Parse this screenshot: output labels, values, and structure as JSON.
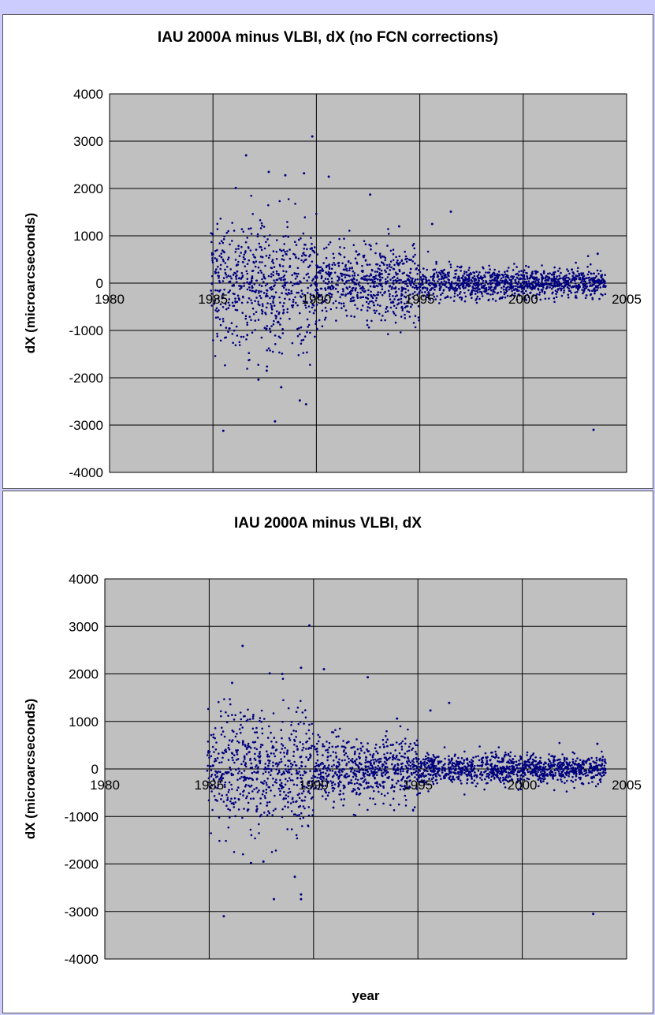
{
  "chart_data": [
    {
      "type": "scatter",
      "title": "IAU 2000A minus VLBI, dX (no FCN corrections)",
      "xlabel": "",
      "ylabel": "dX (microarcseconds)",
      "xlim": [
        1980,
        2005
      ],
      "ylim": [
        -4000,
        4000
      ],
      "xticks": [
        "1980",
        "1985",
        "1990",
        "1995",
        "2000",
        "2005"
      ],
      "yticks": [
        "4000",
        "3000",
        "2000",
        "1000",
        "0",
        "-1000",
        "-2000",
        "-3000",
        "-4000"
      ],
      "grid": true,
      "legend": "none",
      "colors": {
        "marker": "#00007f",
        "plot_bg": "#c0c0c0",
        "grid": "#000000"
      },
      "series": [
        {
          "spread_by_period": [
            {
              "from": 1984.9,
              "to": 1990.0,
              "sd": 700
            },
            {
              "from": 1990.0,
              "to": 1995.0,
              "sd": 380
            },
            {
              "from": 1995.0,
              "to": 2000.0,
              "sd": 170
            },
            {
              "from": 2000.0,
              "to": 2004.0,
              "sd": 150
            }
          ],
          "sample_points": [
            [
              1985.5,
              -3120
            ],
            [
              1986.1,
              2010
            ],
            [
              1986.6,
              2700
            ],
            [
              1987.7,
              2350
            ],
            [
              1988.5,
              2280
            ],
            [
              1989.4,
              2320
            ],
            [
              1989.8,
              3100
            ],
            [
              1990.6,
              2250
            ],
            [
              1987.2,
              -2040
            ],
            [
              1987.6,
              -1850
            ],
            [
              1988.0,
              -2920
            ],
            [
              1988.3,
              -2200
            ],
            [
              1989.2,
              -2480
            ],
            [
              1989.5,
              -2560
            ],
            [
              1992.6,
              1870
            ],
            [
              1994.0,
              1200
            ],
            [
              1995.6,
              1250
            ],
            [
              1996.5,
              1510
            ],
            [
              2003.4,
              -3100
            ],
            [
              2003.6,
              620
            ]
          ]
        }
      ]
    },
    {
      "type": "scatter",
      "title": "IAU 2000A minus VLBI, dX",
      "xlabel": "year",
      "ylabel": "dX (microarcseconds)",
      "xlim": [
        1980,
        2005
      ],
      "ylim": [
        -4000,
        4000
      ],
      "xticks": [
        "1980",
        "1985",
        "1990",
        "1995",
        "2000",
        "2005"
      ],
      "yticks": [
        "4000",
        "3000",
        "2000",
        "1000",
        "0",
        "-1000",
        "-2000",
        "-3000",
        "-4000"
      ],
      "grid": true,
      "legend": "none",
      "colors": {
        "marker": "#00007f",
        "plot_bg": "#c0c0c0",
        "grid": "#000000"
      },
      "series": [
        {
          "spread_by_period": [
            {
              "from": 1984.9,
              "to": 1990.0,
              "sd": 620
            },
            {
              "from": 1990.0,
              "to": 1995.0,
              "sd": 340
            },
            {
              "from": 1995.0,
              "to": 2000.0,
              "sd": 160
            },
            {
              "from": 2000.0,
              "to": 2004.0,
              "sd": 140
            }
          ],
          "sample_points": [
            [
              1985.7,
              -3100
            ],
            [
              1986.1,
              1810
            ],
            [
              1986.6,
              2590
            ],
            [
              1987.9,
              2010
            ],
            [
              1988.5,
              2000
            ],
            [
              1989.4,
              2130
            ],
            [
              1989.8,
              3020
            ],
            [
              1990.5,
              2100
            ],
            [
              1987.0,
              -1980
            ],
            [
              1987.6,
              -1950
            ],
            [
              1988.1,
              -2740
            ],
            [
              1989.1,
              -2270
            ],
            [
              1989.4,
              -2740
            ],
            [
              1989.4,
              -2640
            ],
            [
              1992.6,
              1930
            ],
            [
              1994.0,
              1060
            ],
            [
              1995.6,
              1230
            ],
            [
              1996.5,
              1390
            ],
            [
              2003.4,
              -3050
            ],
            [
              2003.6,
              530
            ]
          ]
        }
      ]
    }
  ]
}
